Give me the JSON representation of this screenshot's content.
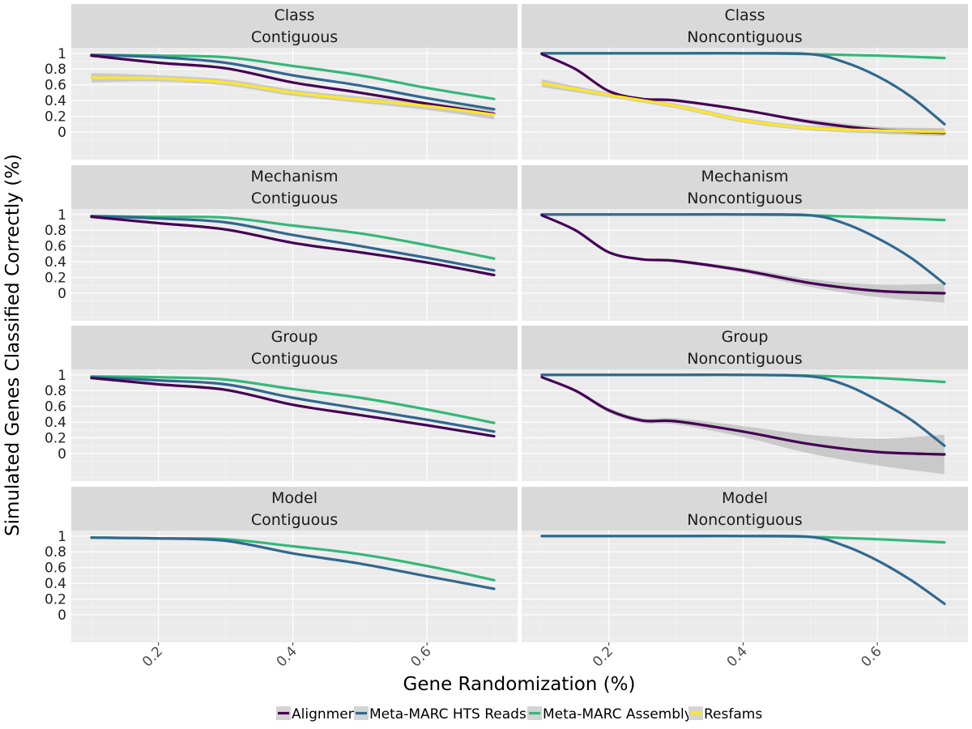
{
  "chart_data": {
    "type": "line",
    "xlabel": "Gene Randomization (%)",
    "ylabel": "Simulated Genes Classified Correctly (%)",
    "x_ticks": [
      0.2,
      0.4,
      0.6
    ],
    "x_tick_labels": [
      "0.2",
      "0.4",
      "0.6"
    ],
    "y_ticks": [
      0,
      0.2,
      0.4,
      0.6,
      0.8,
      1
    ],
    "y_tick_labels": [
      "0",
      "0.2",
      "0.4",
      "0.6",
      "0.8",
      "1"
    ],
    "xlim": [
      0.07,
      0.735
    ],
    "ylim": [
      -0.35,
      1.07
    ],
    "legend_position": "bottom",
    "grid": true,
    "series_meta": [
      {
        "name": "Alignment",
        "color": "#440154"
      },
      {
        "name": "Meta-MARC HTS Reads",
        "color": "#31688E"
      },
      {
        "name": "Meta-MARC Assembly",
        "color": "#35B779"
      },
      {
        "name": "Resfams",
        "color": "#FDE725"
      }
    ],
    "facets": [
      {
        "row_label": "Class",
        "col_label": "Contiguous",
        "series": [
          {
            "name": "Meta-MARC Assembly",
            "x": [
              0.1,
              0.2,
              0.3,
              0.4,
              0.5,
              0.6,
              0.7
            ],
            "y": [
              0.98,
              0.97,
              0.95,
              0.84,
              0.72,
              0.56,
              0.42
            ],
            "band": [
              0,
              0,
              0,
              0,
              0,
              0,
              0
            ]
          },
          {
            "name": "Meta-MARC HTS Reads",
            "x": [
              0.1,
              0.2,
              0.3,
              0.4,
              0.5,
              0.6,
              0.7
            ],
            "y": [
              0.98,
              0.95,
              0.88,
              0.72,
              0.59,
              0.43,
              0.29
            ],
            "band": [
              0,
              0,
              0,
              0,
              0,
              0,
              0
            ]
          },
          {
            "name": "Alignment",
            "x": [
              0.1,
              0.2,
              0.3,
              0.4,
              0.5,
              0.6,
              0.7
            ],
            "y": [
              0.97,
              0.88,
              0.81,
              0.63,
              0.5,
              0.36,
              0.23
            ],
            "band": [
              0,
              0,
              0,
              0,
              0,
              0,
              0
            ]
          },
          {
            "name": "Resfams",
            "x": [
              0.1,
              0.2,
              0.3,
              0.4,
              0.5,
              0.6,
              0.7
            ],
            "y": [
              0.69,
              0.68,
              0.63,
              0.5,
              0.41,
              0.33,
              0.22
            ],
            "band": [
              0.06,
              0.04,
              0.04,
              0.04,
              0.04,
              0.05,
              0.06
            ]
          }
        ]
      },
      {
        "row_label": "Class",
        "col_label": "Noncontiguous",
        "series": [
          {
            "name": "Meta-MARC Assembly",
            "x": [
              0.1,
              0.2,
              0.3,
              0.4,
              0.5,
              0.6,
              0.7
            ],
            "y": [
              1,
              1,
              1,
              1,
              0.99,
              0.97,
              0.94
            ],
            "band": [
              0,
              0,
              0,
              0,
              0,
              0,
              0
            ]
          },
          {
            "name": "Meta-MARC HTS Reads",
            "x": [
              0.1,
              0.2,
              0.3,
              0.4,
              0.5,
              0.55,
              0.6,
              0.65,
              0.7
            ],
            "y": [
              1,
              1,
              1,
              1,
              0.99,
              0.89,
              0.71,
              0.45,
              0.1
            ],
            "band": [
              0,
              0,
              0,
              0,
              0,
              0,
              0,
              0,
              0
            ]
          },
          {
            "name": "Alignment",
            "x": [
              0.1,
              0.15,
              0.2,
              0.25,
              0.3,
              0.4,
              0.5,
              0.6,
              0.7
            ],
            "y": [
              0.99,
              0.8,
              0.52,
              0.42,
              0.4,
              0.28,
              0.13,
              0.03,
              -0.01
            ],
            "band": [
              0,
              0,
              0,
              0,
              0,
              0,
              0.03,
              0.04,
              0.04
            ]
          },
          {
            "name": "Resfams",
            "x": [
              0.1,
              0.2,
              0.3,
              0.4,
              0.5,
              0.6,
              0.7
            ],
            "y": [
              0.62,
              0.47,
              0.33,
              0.15,
              0.05,
              0.02,
              0.0
            ],
            "band": [
              0.05,
              0.03,
              0.03,
              0.03,
              0.03,
              0.04,
              0.05
            ]
          }
        ]
      },
      {
        "row_label": "Mechanism",
        "col_label": "Contiguous",
        "series": [
          {
            "name": "Meta-MARC Assembly",
            "x": [
              0.1,
              0.2,
              0.3,
              0.4,
              0.5,
              0.6,
              0.7
            ],
            "y": [
              0.98,
              0.97,
              0.96,
              0.86,
              0.76,
              0.61,
              0.44
            ],
            "band": [
              0,
              0,
              0,
              0,
              0,
              0,
              0
            ]
          },
          {
            "name": "Meta-MARC HTS Reads",
            "x": [
              0.1,
              0.2,
              0.3,
              0.4,
              0.5,
              0.6,
              0.7
            ],
            "y": [
              0.98,
              0.95,
              0.9,
              0.74,
              0.6,
              0.45,
              0.29
            ],
            "band": [
              0,
              0,
              0,
              0,
              0,
              0,
              0
            ]
          },
          {
            "name": "Alignment",
            "x": [
              0.1,
              0.2,
              0.3,
              0.4,
              0.5,
              0.6,
              0.7
            ],
            "y": [
              0.97,
              0.89,
              0.81,
              0.64,
              0.52,
              0.39,
              0.23
            ],
            "band": [
              0,
              0,
              0,
              0,
              0,
              0,
              0
            ]
          }
        ]
      },
      {
        "row_label": "Mechanism",
        "col_label": "Noncontiguous",
        "series": [
          {
            "name": "Meta-MARC Assembly",
            "x": [
              0.1,
              0.2,
              0.3,
              0.4,
              0.5,
              0.6,
              0.7
            ],
            "y": [
              1,
              1,
              1,
              1,
              0.99,
              0.96,
              0.93
            ],
            "band": [
              0,
              0,
              0,
              0,
              0,
              0,
              0
            ]
          },
          {
            "name": "Meta-MARC HTS Reads",
            "x": [
              0.1,
              0.2,
              0.3,
              0.4,
              0.5,
              0.55,
              0.6,
              0.65,
              0.7
            ],
            "y": [
              1,
              1,
              1,
              1,
              0.99,
              0.89,
              0.7,
              0.45,
              0.12
            ],
            "band": [
              0,
              0,
              0,
              0,
              0,
              0,
              0,
              0,
              0
            ]
          },
          {
            "name": "Alignment",
            "x": [
              0.1,
              0.15,
              0.2,
              0.25,
              0.3,
              0.4,
              0.5,
              0.6,
              0.7
            ],
            "y": [
              0.99,
              0.8,
              0.52,
              0.43,
              0.41,
              0.29,
              0.13,
              0.03,
              0.0
            ],
            "band": [
              0,
              0,
              0,
              0.01,
              0.02,
              0.03,
              0.05,
              0.08,
              0.12
            ]
          }
        ]
      },
      {
        "row_label": "Group",
        "col_label": "Contiguous",
        "series": [
          {
            "name": "Meta-MARC Assembly",
            "x": [
              0.1,
              0.2,
              0.3,
              0.4,
              0.5,
              0.6,
              0.7
            ],
            "y": [
              0.98,
              0.97,
              0.94,
              0.82,
              0.71,
              0.56,
              0.39
            ],
            "band": [
              0,
              0,
              0,
              0,
              0,
              0,
              0
            ]
          },
          {
            "name": "Meta-MARC HTS Reads",
            "x": [
              0.1,
              0.2,
              0.3,
              0.4,
              0.5,
              0.6,
              0.7
            ],
            "y": [
              0.97,
              0.93,
              0.88,
              0.71,
              0.57,
              0.43,
              0.28
            ],
            "band": [
              0,
              0,
              0,
              0,
              0,
              0,
              0
            ]
          },
          {
            "name": "Alignment",
            "x": [
              0.1,
              0.2,
              0.3,
              0.4,
              0.5,
              0.6,
              0.7
            ],
            "y": [
              0.96,
              0.88,
              0.81,
              0.62,
              0.49,
              0.36,
              0.22
            ],
            "band": [
              0,
              0,
              0,
              0,
              0,
              0,
              0
            ]
          }
        ]
      },
      {
        "row_label": "Group",
        "col_label": "Noncontiguous",
        "series": [
          {
            "name": "Meta-MARC Assembly",
            "x": [
              0.1,
              0.2,
              0.3,
              0.4,
              0.5,
              0.6,
              0.7
            ],
            "y": [
              1,
              1,
              1,
              1,
              0.99,
              0.96,
              0.91
            ],
            "band": [
              0,
              0,
              0,
              0,
              0,
              0,
              0
            ]
          },
          {
            "name": "Meta-MARC HTS Reads",
            "x": [
              0.1,
              0.2,
              0.3,
              0.4,
              0.5,
              0.55,
              0.6,
              0.65,
              0.7
            ],
            "y": [
              1,
              1,
              1,
              1,
              0.98,
              0.88,
              0.68,
              0.43,
              0.1
            ],
            "band": [
              0,
              0,
              0,
              0,
              0,
              0,
              0,
              0,
              0
            ]
          },
          {
            "name": "Alignment",
            "x": [
              0.1,
              0.15,
              0.2,
              0.25,
              0.3,
              0.4,
              0.5,
              0.6,
              0.7
            ],
            "y": [
              0.97,
              0.8,
              0.55,
              0.42,
              0.41,
              0.28,
              0.12,
              0.02,
              -0.01
            ],
            "band": [
              0.01,
              0.02,
              0.03,
              0.03,
              0.04,
              0.07,
              0.12,
              0.17,
              0.25
            ]
          }
        ]
      },
      {
        "row_label": "Model",
        "col_label": "Contiguous",
        "series": [
          {
            "name": "Meta-MARC Assembly",
            "x": [
              0.1,
              0.2,
              0.3,
              0.4,
              0.5,
              0.6,
              0.7
            ],
            "y": [
              0.98,
              0.97,
              0.96,
              0.87,
              0.77,
              0.62,
              0.44
            ],
            "band": [
              0,
              0,
              0,
              0,
              0,
              0,
              0
            ]
          },
          {
            "name": "Meta-MARC HTS Reads",
            "x": [
              0.1,
              0.2,
              0.3,
              0.4,
              0.5,
              0.6,
              0.7
            ],
            "y": [
              0.98,
              0.97,
              0.94,
              0.78,
              0.65,
              0.49,
              0.33
            ],
            "band": [
              0,
              0,
              0,
              0,
              0,
              0,
              0
            ]
          }
        ]
      },
      {
        "row_label": "Model",
        "col_label": "Noncontiguous",
        "series": [
          {
            "name": "Meta-MARC Assembly",
            "x": [
              0.1,
              0.2,
              0.3,
              0.4,
              0.5,
              0.6,
              0.7
            ],
            "y": [
              1,
              1,
              1,
              1,
              0.99,
              0.96,
              0.92
            ],
            "band": [
              0,
              0,
              0,
              0,
              0,
              0,
              0
            ]
          },
          {
            "name": "Meta-MARC HTS Reads",
            "x": [
              0.1,
              0.2,
              0.3,
              0.4,
              0.5,
              0.55,
              0.6,
              0.65,
              0.7
            ],
            "y": [
              1,
              1,
              1,
              1,
              0.99,
              0.88,
              0.69,
              0.44,
              0.14
            ],
            "band": [
              0,
              0,
              0,
              0,
              0,
              0,
              0,
              0,
              0
            ]
          }
        ]
      }
    ]
  }
}
